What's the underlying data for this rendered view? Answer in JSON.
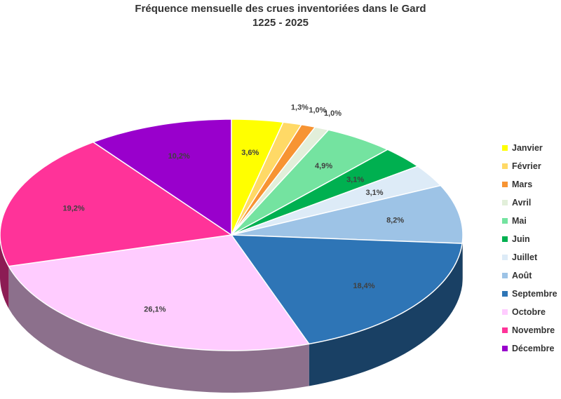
{
  "chart_data": {
    "type": "pie",
    "style": "3d",
    "title": "Fréquence mensuelle des crues inventoriées dans le Gard",
    "subtitle": "1225 - 2025",
    "legend_position": "right",
    "categories": [
      "Janvier",
      "Février",
      "Mars",
      "Avril",
      "Mai",
      "Juin",
      "Juillet",
      "Août",
      "Septembre",
      "Octobre",
      "Novembre",
      "Décembre"
    ],
    "values": [
      3.6,
      1.3,
      1.0,
      1.0,
      4.9,
      3.1,
      3.1,
      8.2,
      18.4,
      26.1,
      19.2,
      10.2
    ],
    "labels": [
      "3,6%",
      "1,3%",
      "1,0%",
      "1,0%",
      "4,9%",
      "3,1%",
      "3,1%",
      "8,2%",
      "18,4%",
      "26,1%",
      "19,2%",
      "10,2%"
    ],
    "colors": [
      "#FFFF00",
      "#FFD966",
      "#F79433",
      "#E2EFDA",
      "#74E3A0",
      "#00B050",
      "#DDEBF7",
      "#9DC3E6",
      "#2E75B6",
      "#FFCCFF",
      "#FF3399",
      "#9900CC"
    ]
  }
}
